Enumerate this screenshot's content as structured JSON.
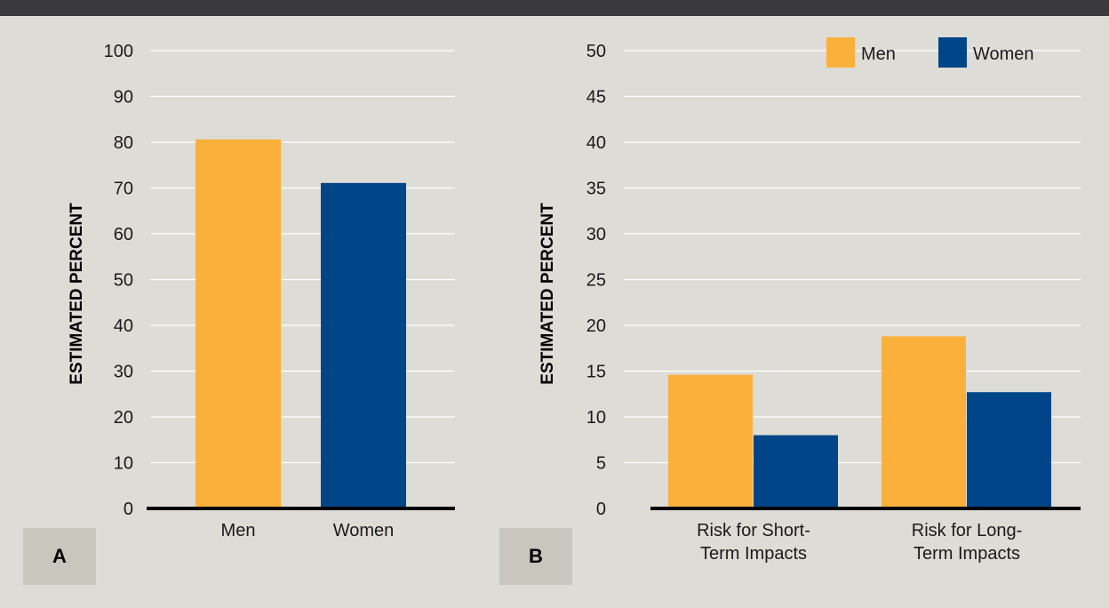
{
  "colors": {
    "men": "#fbb03b",
    "women": "#004587",
    "background": "#dedcd6",
    "badge": "#c9c6be",
    "gridline": "#ffffff",
    "axis": "#000000"
  },
  "chart_data": [
    {
      "type": "bar",
      "panel_label": "A",
      "categories": [
        "Men",
        "Women"
      ],
      "series": [
        {
          "name": "",
          "values": [
            80.6,
            71.1
          ],
          "colors": [
            "#fbb03b",
            "#004587"
          ]
        }
      ],
      "ylabel": "ESTIMATED PERCENT",
      "ylim": [
        0,
        100
      ],
      "yticks": [
        "0",
        "10",
        "20",
        "30",
        "40",
        "50",
        "60",
        "70",
        "80",
        "90",
        "100"
      ],
      "grid": true,
      "legend": "none"
    },
    {
      "type": "bar",
      "panel_label": "B",
      "categories": [
        "Risk for Short-Term Impacts",
        "Risk for Long-Term Impacts"
      ],
      "category_lines": [
        [
          "Risk for Short-",
          "Term Impacts"
        ],
        [
          "Risk for Long-",
          "Term Impacts"
        ]
      ],
      "series": [
        {
          "name": "Men",
          "values": [
            14.6,
            18.8
          ],
          "color": "#fbb03b"
        },
        {
          "name": "Women",
          "values": [
            8.0,
            12.7
          ],
          "color": "#004587"
        }
      ],
      "ylabel": "ESTIMATED PERCENT",
      "ylim": [
        0,
        50
      ],
      "yticks": [
        "0",
        "5",
        "10",
        "15",
        "20",
        "25",
        "30",
        "35",
        "40",
        "45",
        "50"
      ],
      "grid": true,
      "legend": "top-right"
    }
  ]
}
